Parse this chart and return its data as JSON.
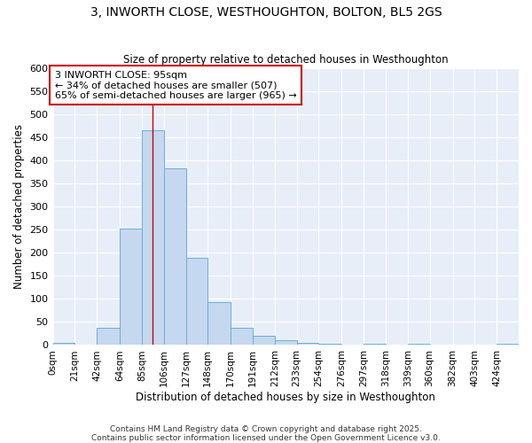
{
  "title1": "3, INWORTH CLOSE, WESTHOUGHTON, BOLTON, BL5 2GS",
  "title2": "Size of property relative to detached houses in Westhoughton",
  "xlabel": "Distribution of detached houses by size in Westhoughton",
  "ylabel": "Number of detached properties",
  "footer1": "Contains HM Land Registry data © Crown copyright and database right 2025.",
  "footer2": "Contains public sector information licensed under the Open Government Licence v3.0.",
  "bar_color": "#c5d8f0",
  "bar_edge_color": "#6baed6",
  "background_color": "#ffffff",
  "plot_bg_color": "#e8eef8",
  "grid_color": "#ffffff",
  "annotation_box_color": "#cc0000",
  "annotation_line1": "3 INWORTH CLOSE: 95sqm",
  "annotation_line2": "← 34% of detached houses are smaller (507)",
  "annotation_line3": "65% of semi-detached houses are larger (965) →",
  "vline_x": 95,
  "vline_color": "#cc0000",
  "categories": [
    "0sqm",
    "21sqm",
    "42sqm",
    "64sqm",
    "85sqm",
    "106sqm",
    "127sqm",
    "148sqm",
    "170sqm",
    "191sqm",
    "212sqm",
    "233sqm",
    "254sqm",
    "276sqm",
    "297sqm",
    "318sqm",
    "339sqm",
    "360sqm",
    "382sqm",
    "403sqm",
    "424sqm"
  ],
  "bin_edges": [
    0,
    21,
    42,
    64,
    85,
    106,
    127,
    148,
    170,
    191,
    212,
    233,
    254,
    276,
    297,
    318,
    339,
    360,
    382,
    403,
    424,
    445
  ],
  "values": [
    5,
    0,
    37,
    252,
    465,
    383,
    190,
    93,
    37,
    20,
    10,
    5,
    2,
    0,
    2,
    0,
    2,
    0,
    0,
    0,
    2
  ],
  "ylim": [
    0,
    600
  ],
  "yticks": [
    0,
    50,
    100,
    150,
    200,
    250,
    300,
    350,
    400,
    450,
    500,
    550,
    600
  ]
}
